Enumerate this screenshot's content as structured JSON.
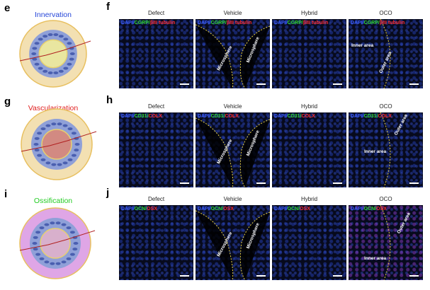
{
  "stain_colors": [
    "#3a5cff",
    "#2fd82f",
    "#ff2b2b"
  ],
  "rows": [
    {
      "letter_left": "e",
      "title": "Innervation",
      "title_color": "#2445d8",
      "letter_right": "f",
      "columns": [
        "Defect",
        "Vehicle",
        "Hybrid",
        "OCO"
      ],
      "stain": [
        "DAPI/",
        "CGRP/",
        "βIII tubulin"
      ],
      "annotations": [
        [],
        [
          "Microsphere",
          "Microsphere"
        ],
        [],
        [
          "Inner area",
          "Outer area"
        ]
      ]
    },
    {
      "letter_left": "g",
      "title": "Vascularization",
      "title_color": "#e02020",
      "letter_right": "h",
      "columns": [
        "Defect",
        "Vehicle",
        "Hybrid",
        "OCO"
      ],
      "stain": [
        "DAPI/",
        "CD31/",
        "COLX"
      ],
      "annotations": [
        [],
        [
          "Microsphere",
          "Microsphere"
        ],
        [],
        [
          "Outer area",
          "Inner area"
        ]
      ]
    },
    {
      "letter_left": "i",
      "title": "Ossification",
      "title_color": "#22cc22",
      "letter_right": "j",
      "columns": [
        "Defect",
        "Vehicle",
        "Hybrid",
        "OCO"
      ],
      "stain": [
        "DAPI/",
        "OCN/",
        "OSX"
      ],
      "annotations": [
        [],
        [
          "Microsphere",
          "Microsphere"
        ],
        [],
        [
          "Outer area",
          "Inner area"
        ]
      ]
    }
  ]
}
